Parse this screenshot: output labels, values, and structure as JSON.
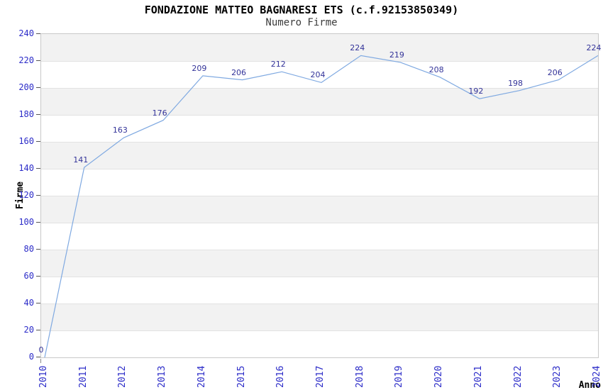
{
  "title": "FONDAZIONE MATTEO BAGNARESI ETS (c.f.92153850349)",
  "subtitle": "Numero Firme",
  "chart_data": {
    "type": "line",
    "title": "FONDAZIONE MATTEO BAGNARESI ETS (c.f.92153850349)",
    "subtitle": "Numero Firme",
    "xlabel": "Anno",
    "ylabel": "Firme",
    "x": [
      "2010",
      "2011",
      "2012",
      "2013",
      "2014",
      "2015",
      "2016",
      "2017",
      "2018",
      "2019",
      "2020",
      "2021",
      "2022",
      "2023",
      "2024"
    ],
    "series": [
      {
        "name": "Numero Firme",
        "values": [
          0,
          141,
          163,
          176,
          209,
          206,
          212,
          204,
          224,
          219,
          208,
          192,
          198,
          206,
          224
        ]
      }
    ],
    "ylim": [
      0,
      240
    ],
    "ytick_step": 20,
    "grid": "horizontal-alternating-bands",
    "legend": "none",
    "point_markers": false,
    "colors": {
      "line": "#7fa9e1",
      "value_label": "#333399",
      "tick_label": "#2b2bc8",
      "band_dark": "#f2f2f2",
      "band_light": "#ffffff",
      "grid_line": "#e2e2e2",
      "plot_border": "#c9c9c9",
      "title": "#000000",
      "subtitle": "#3c3c3c",
      "axis_title": "#000000"
    }
  }
}
